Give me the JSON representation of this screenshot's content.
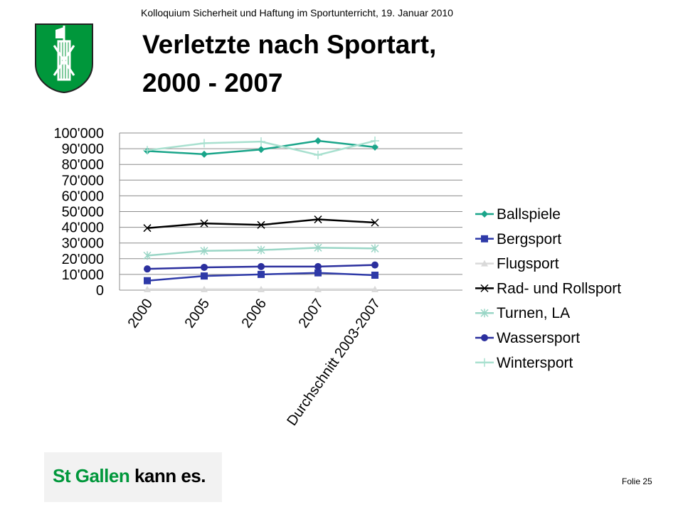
{
  "header": {
    "subtitle": "Kolloquium Sicherheit und Haftung im Sportunterricht, 19. Januar 2010",
    "title_line1": "Verletzte nach Sportart,",
    "title_line2": "2000 - 2007"
  },
  "footer": {
    "logo_part1": "St Gallen",
    "logo_part2": "kann es.",
    "slide_number": "Folie 25"
  },
  "colors": {
    "brand_green": "#00973b"
  },
  "chart_data": {
    "type": "line",
    "title": "",
    "xlabel": "",
    "ylabel": "",
    "categories": [
      "2000",
      "2005",
      "2006",
      "2007",
      "Durchschnitt 2003-2007"
    ],
    "ylim": [
      0,
      100000
    ],
    "yticks": [
      0,
      10000,
      20000,
      30000,
      40000,
      50000,
      60000,
      70000,
      80000,
      90000,
      100000
    ],
    "ytick_labels": [
      "0",
      "10'000",
      "20'000",
      "30'000",
      "40'000",
      "50'000",
      "60'000",
      "70'000",
      "80'000",
      "90'000",
      "100'000"
    ],
    "grid": true,
    "legend": "right",
    "series": [
      {
        "name": "Ballspiele",
        "color": "#1aa58a",
        "marker": "diamond",
        "values": [
          88500,
          86500,
          89500,
          95000,
          91000
        ]
      },
      {
        "name": "Bergsport",
        "color": "#2e3aa8",
        "marker": "square",
        "values": [
          6000,
          9000,
          10000,
          11000,
          9500
        ]
      },
      {
        "name": "Flugsport",
        "color": "#d9d9d9",
        "marker": "triangle",
        "values": [
          500,
          500,
          500,
          500,
          500
        ]
      },
      {
        "name": "Rad- und Rollsport",
        "color": "#000000",
        "marker": "x",
        "values": [
          39500,
          42500,
          41500,
          45000,
          43000
        ]
      },
      {
        "name": "Turnen, LA",
        "color": "#9ad6c6",
        "marker": "star",
        "values": [
          22000,
          25000,
          25500,
          27000,
          26500
        ]
      },
      {
        "name": "Wassersport",
        "color": "#2b2f9e",
        "marker": "circle",
        "values": [
          13500,
          14500,
          15000,
          15000,
          16000
        ]
      },
      {
        "name": "Wintersport",
        "color": "#a8e0cf",
        "marker": "plus",
        "values": [
          89000,
          93500,
          94500,
          86000,
          95000
        ]
      }
    ]
  }
}
